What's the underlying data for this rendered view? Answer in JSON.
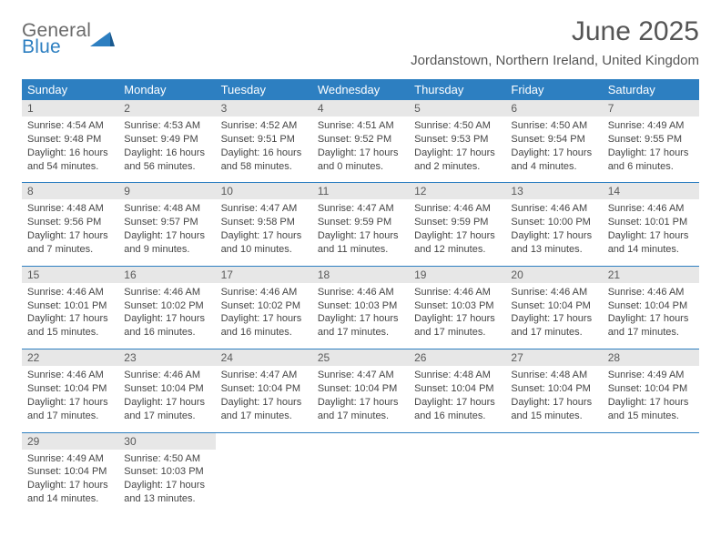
{
  "brand": {
    "name_top": "General",
    "name_bottom": "Blue"
  },
  "title": "June 2025",
  "subtitle": "Jordanstown, Northern Ireland, United Kingdom",
  "colors": {
    "header_bg": "#2d7fc1",
    "header_text": "#ffffff",
    "daynum_bg": "#e7e7e7",
    "text": "#444444",
    "rule": "#2d7fc1",
    "page_bg": "#ffffff"
  },
  "typography": {
    "title_fontsize": 30,
    "subtitle_fontsize": 15,
    "weekday_fontsize": 13,
    "daynum_fontsize": 12,
    "detail_fontsize": 11
  },
  "weekdays": [
    "Sunday",
    "Monday",
    "Tuesday",
    "Wednesday",
    "Thursday",
    "Friday",
    "Saturday"
  ],
  "weeks": [
    [
      {
        "n": "1",
        "sr": "Sunrise: 4:54 AM",
        "ss": "Sunset: 9:48 PM",
        "d1": "Daylight: 16 hours",
        "d2": "and 54 minutes."
      },
      {
        "n": "2",
        "sr": "Sunrise: 4:53 AM",
        "ss": "Sunset: 9:49 PM",
        "d1": "Daylight: 16 hours",
        "d2": "and 56 minutes."
      },
      {
        "n": "3",
        "sr": "Sunrise: 4:52 AM",
        "ss": "Sunset: 9:51 PM",
        "d1": "Daylight: 16 hours",
        "d2": "and 58 minutes."
      },
      {
        "n": "4",
        "sr": "Sunrise: 4:51 AM",
        "ss": "Sunset: 9:52 PM",
        "d1": "Daylight: 17 hours",
        "d2": "and 0 minutes."
      },
      {
        "n": "5",
        "sr": "Sunrise: 4:50 AM",
        "ss": "Sunset: 9:53 PM",
        "d1": "Daylight: 17 hours",
        "d2": "and 2 minutes."
      },
      {
        "n": "6",
        "sr": "Sunrise: 4:50 AM",
        "ss": "Sunset: 9:54 PM",
        "d1": "Daylight: 17 hours",
        "d2": "and 4 minutes."
      },
      {
        "n": "7",
        "sr": "Sunrise: 4:49 AM",
        "ss": "Sunset: 9:55 PM",
        "d1": "Daylight: 17 hours",
        "d2": "and 6 minutes."
      }
    ],
    [
      {
        "n": "8",
        "sr": "Sunrise: 4:48 AM",
        "ss": "Sunset: 9:56 PM",
        "d1": "Daylight: 17 hours",
        "d2": "and 7 minutes."
      },
      {
        "n": "9",
        "sr": "Sunrise: 4:48 AM",
        "ss": "Sunset: 9:57 PM",
        "d1": "Daylight: 17 hours",
        "d2": "and 9 minutes."
      },
      {
        "n": "10",
        "sr": "Sunrise: 4:47 AM",
        "ss": "Sunset: 9:58 PM",
        "d1": "Daylight: 17 hours",
        "d2": "and 10 minutes."
      },
      {
        "n": "11",
        "sr": "Sunrise: 4:47 AM",
        "ss": "Sunset: 9:59 PM",
        "d1": "Daylight: 17 hours",
        "d2": "and 11 minutes."
      },
      {
        "n": "12",
        "sr": "Sunrise: 4:46 AM",
        "ss": "Sunset: 9:59 PM",
        "d1": "Daylight: 17 hours",
        "d2": "and 12 minutes."
      },
      {
        "n": "13",
        "sr": "Sunrise: 4:46 AM",
        "ss": "Sunset: 10:00 PM",
        "d1": "Daylight: 17 hours",
        "d2": "and 13 minutes."
      },
      {
        "n": "14",
        "sr": "Sunrise: 4:46 AM",
        "ss": "Sunset: 10:01 PM",
        "d1": "Daylight: 17 hours",
        "d2": "and 14 minutes."
      }
    ],
    [
      {
        "n": "15",
        "sr": "Sunrise: 4:46 AM",
        "ss": "Sunset: 10:01 PM",
        "d1": "Daylight: 17 hours",
        "d2": "and 15 minutes."
      },
      {
        "n": "16",
        "sr": "Sunrise: 4:46 AM",
        "ss": "Sunset: 10:02 PM",
        "d1": "Daylight: 17 hours",
        "d2": "and 16 minutes."
      },
      {
        "n": "17",
        "sr": "Sunrise: 4:46 AM",
        "ss": "Sunset: 10:02 PM",
        "d1": "Daylight: 17 hours",
        "d2": "and 16 minutes."
      },
      {
        "n": "18",
        "sr": "Sunrise: 4:46 AM",
        "ss": "Sunset: 10:03 PM",
        "d1": "Daylight: 17 hours",
        "d2": "and 17 minutes."
      },
      {
        "n": "19",
        "sr": "Sunrise: 4:46 AM",
        "ss": "Sunset: 10:03 PM",
        "d1": "Daylight: 17 hours",
        "d2": "and 17 minutes."
      },
      {
        "n": "20",
        "sr": "Sunrise: 4:46 AM",
        "ss": "Sunset: 10:04 PM",
        "d1": "Daylight: 17 hours",
        "d2": "and 17 minutes."
      },
      {
        "n": "21",
        "sr": "Sunrise: 4:46 AM",
        "ss": "Sunset: 10:04 PM",
        "d1": "Daylight: 17 hours",
        "d2": "and 17 minutes."
      }
    ],
    [
      {
        "n": "22",
        "sr": "Sunrise: 4:46 AM",
        "ss": "Sunset: 10:04 PM",
        "d1": "Daylight: 17 hours",
        "d2": "and 17 minutes."
      },
      {
        "n": "23",
        "sr": "Sunrise: 4:46 AM",
        "ss": "Sunset: 10:04 PM",
        "d1": "Daylight: 17 hours",
        "d2": "and 17 minutes."
      },
      {
        "n": "24",
        "sr": "Sunrise: 4:47 AM",
        "ss": "Sunset: 10:04 PM",
        "d1": "Daylight: 17 hours",
        "d2": "and 17 minutes."
      },
      {
        "n": "25",
        "sr": "Sunrise: 4:47 AM",
        "ss": "Sunset: 10:04 PM",
        "d1": "Daylight: 17 hours",
        "d2": "and 17 minutes."
      },
      {
        "n": "26",
        "sr": "Sunrise: 4:48 AM",
        "ss": "Sunset: 10:04 PM",
        "d1": "Daylight: 17 hours",
        "d2": "and 16 minutes."
      },
      {
        "n": "27",
        "sr": "Sunrise: 4:48 AM",
        "ss": "Sunset: 10:04 PM",
        "d1": "Daylight: 17 hours",
        "d2": "and 15 minutes."
      },
      {
        "n": "28",
        "sr": "Sunrise: 4:49 AM",
        "ss": "Sunset: 10:04 PM",
        "d1": "Daylight: 17 hours",
        "d2": "and 15 minutes."
      }
    ],
    [
      {
        "n": "29",
        "sr": "Sunrise: 4:49 AM",
        "ss": "Sunset: 10:04 PM",
        "d1": "Daylight: 17 hours",
        "d2": "and 14 minutes."
      },
      {
        "n": "30",
        "sr": "Sunrise: 4:50 AM",
        "ss": "Sunset: 10:03 PM",
        "d1": "Daylight: 17 hours",
        "d2": "and 13 minutes."
      },
      null,
      null,
      null,
      null,
      null
    ]
  ]
}
